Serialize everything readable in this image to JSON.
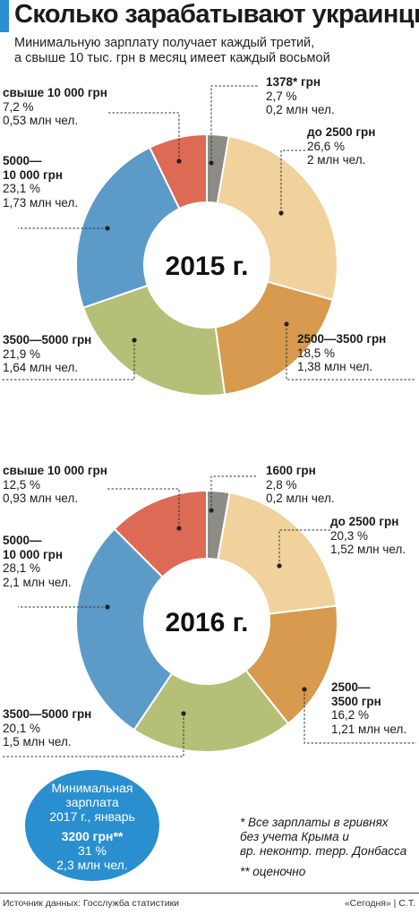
{
  "header": {
    "title": "Сколько зарабатывают украинцы",
    "subtitle_line1": "Минимальную зарплату получает каждый третий,",
    "subtitle_line2": "а свыше 10 тыс. грн в месяц имеет каждый восьмой"
  },
  "colors": {
    "accent": "#2a8fcf",
    "gray": "#8c8b86",
    "sand": "#f1d29c",
    "orange": "#d79a4e",
    "olive": "#b5bf77",
    "blue": "#5c9bc8",
    "red": "#dd6a55"
  },
  "chart_data": [
    {
      "type": "pie",
      "title": "2015 г.",
      "categories": [
        "1378* грн",
        "до 2500 грн",
        "2500—3500 грн",
        "3500—5000 грн",
        "5000—10 000 грн",
        "свыше 10 000 грн"
      ],
      "values": [
        2.7,
        26.6,
        18.5,
        21.9,
        23.1,
        7.2
      ],
      "counts": [
        "0,2 млн чел.",
        "2 млн чел.",
        "1,38 млн чел.",
        "1,64 млн чел.",
        "1,73 млн чел.",
        "0,53 млн чел."
      ],
      "labels": [
        {
          "t1": "1378* грн",
          "t2": "",
          "pct": "2,7 %",
          "cnt": "0,2 млн чел."
        },
        {
          "t1": "до 2500 грн",
          "t2": "",
          "pct": "26,6 %",
          "cnt": "2 млн чел."
        },
        {
          "t1": "2500—3500 грн",
          "t2": "",
          "pct": "18,5 %",
          "cnt": "1,38 млн чел."
        },
        {
          "t1": "3500—5000 грн",
          "t2": "",
          "pct": "21,9 %",
          "cnt": "1,64 млн чел."
        },
        {
          "t1": "5000—",
          "t2": "10 000 грн",
          "pct": "23,1 %",
          "cnt": "1,73 млн чел."
        },
        {
          "t1": "свыше 10 000 грн",
          "t2": "",
          "pct": "7,2 %",
          "cnt": "0,53 млн чел."
        }
      ]
    },
    {
      "type": "pie",
      "title": "2016 г.",
      "categories": [
        "1600 грн",
        "до 2500 грн",
        "2500—3500 грн",
        "3500—5000 грн",
        "5000—10 000 грн",
        "свыше 10 000 грн"
      ],
      "values": [
        2.8,
        20.3,
        16.2,
        20.1,
        28.1,
        12.5
      ],
      "counts": [
        "0,2 млн чел.",
        "1,52 млн чел.",
        "1,21 млн чел.",
        "1,5 млн чел.",
        "2,1 млн чел.",
        "0,93 млн чел."
      ],
      "labels": [
        {
          "t1": "1600 грн",
          "t2": "",
          "pct": "2,8 %",
          "cnt": "0,2 млн чел."
        },
        {
          "t1": "до 2500 грн",
          "t2": "",
          "pct": "20,3 %",
          "cnt": "1,52 млн чел."
        },
        {
          "t1": "2500—",
          "t2": "3500 грн",
          "pct": "16,2 %",
          "cnt": "1,21 млн чел."
        },
        {
          "t1": "3500—5000 грн",
          "t2": "",
          "pct": "20,1 %",
          "cnt": "1,5 млн чел."
        },
        {
          "t1": "5000—",
          "t2": "10 000 грн",
          "pct": "28,1 %",
          "cnt": "2,1 млн чел."
        },
        {
          "t1": "свыше 10 000 грн",
          "t2": "",
          "pct": "12,5 %",
          "cnt": "0,93 млн чел."
        }
      ]
    }
  ],
  "min_wage": {
    "title_line1": "Минимальная",
    "title_line2": "зарплата",
    "title_line3": "2017 г., январь",
    "value": "3200 грн**",
    "pct": "31 %",
    "count": "2,3 млн чел."
  },
  "notes": {
    "note1_line1": "* Все зарплаты в гривнях",
    "note1_line2": "без учета Крыма и",
    "note1_line3": "вр. неконтр. терр. Донбасса",
    "note2": "** оценочно"
  },
  "footer": {
    "source": "Источник данных: Госслужба статистики",
    "credit": "«Сегодня» | С.Т."
  }
}
